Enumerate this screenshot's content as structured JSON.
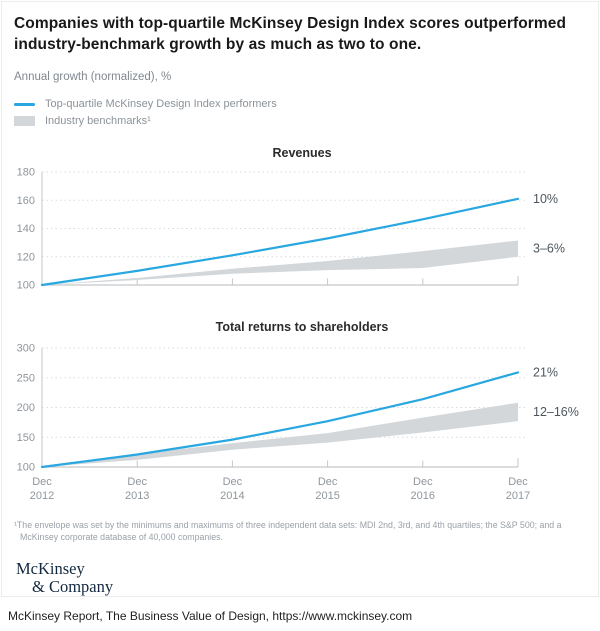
{
  "figure": {
    "title": "Companies with top-quartile McKinsey Design Index scores outperformed industry-benchmark growth by as much as two to one.",
    "subtitle": "Annual growth (normalized), %",
    "legend": [
      {
        "swatch": "line",
        "label": "Top-quartile McKinsey Design Index performers"
      },
      {
        "swatch": "band",
        "label": "Industry benchmarks¹"
      }
    ],
    "footnote": "¹The envelope was set by the minimums and maximums of three independent data sets: MDI 2nd, 3rd, and 4th quartiles; the S&P 500; and a McKinsey corporate database of 40,000 companies.",
    "logo_line1": "McKinsey",
    "logo_line2": "& Company"
  },
  "caption": "McKinsey Report, The Business Value of Design, https://www.mckinsey.com",
  "colors": {
    "line": "#29a7e0",
    "band": "#d3d7da",
    "grid": "#d9dbdd",
    "axis": "#c3c7ca",
    "tick_text": "#8f969c",
    "annotation": "#4d565e"
  },
  "chart_data": [
    {
      "type": "area",
      "title": "Revenues",
      "x": [
        "Dec 2012",
        "Dec 2013",
        "Dec 2014",
        "Dec 2015",
        "Dec 2016",
        "Dec 2017"
      ],
      "show_x_labels": false,
      "yticks": [
        100,
        120,
        140,
        160,
        180
      ],
      "ylim": [
        100,
        180
      ],
      "grid": true,
      "legend_position": "top-left",
      "series": [
        {
          "name": "Top-quartile McKinsey Design Index performers",
          "type": "line",
          "values": [
            100,
            110,
            121,
            133,
            146.5,
            161
          ],
          "end_label": "10%"
        },
        {
          "name": "Industry benchmarks",
          "type": "band",
          "upper": [
            100,
            105,
            111.5,
            117,
            124,
            131.5
          ],
          "lower": [
            100,
            103.5,
            108,
            110.5,
            112,
            120
          ],
          "end_label": "3–6%"
        }
      ]
    },
    {
      "type": "area",
      "title": "Total returns to shareholders",
      "x": [
        "Dec 2012",
        "Dec 2013",
        "Dec 2014",
        "Dec 2015",
        "Dec 2016",
        "Dec 2017"
      ],
      "show_x_labels": true,
      "yticks": [
        100,
        150,
        200,
        250,
        300
      ],
      "ylim": [
        100,
        300
      ],
      "grid": true,
      "legend_position": "top-left",
      "series": [
        {
          "name": "Top-quartile McKinsey Design Index performers",
          "type": "line",
          "values": [
            100,
            121,
            146,
            177,
            214,
            259
          ],
          "end_label": "21%"
        },
        {
          "name": "Industry benchmarks",
          "type": "band",
          "upper": [
            100,
            122,
            140,
            157,
            183,
            208
          ],
          "lower": [
            100,
            112,
            129,
            141,
            158,
            177
          ],
          "end_label": "12–16%"
        }
      ]
    }
  ]
}
